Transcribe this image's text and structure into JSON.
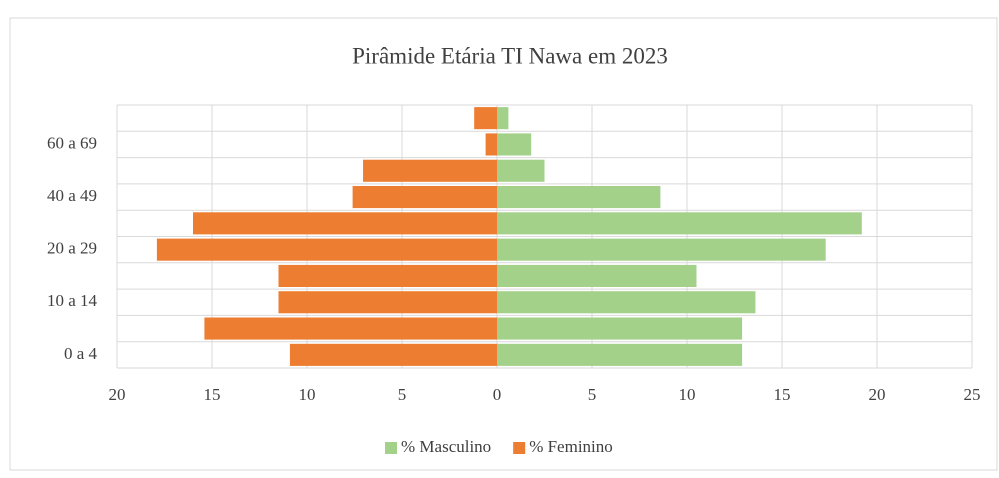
{
  "chart_data": {
    "type": "pyramid",
    "title": "Pirâmide Etária  TI Nawa em 2023",
    "categories": [
      "0 a 4",
      null,
      "10 a 14",
      null,
      "20 a 29",
      null,
      "40 a 49",
      null,
      "60 a 69",
      null
    ],
    "series": [
      {
        "name": "% Masculino",
        "color": "#a3d18a",
        "values": [
          12.9,
          12.9,
          13.6,
          10.5,
          17.3,
          19.2,
          8.6,
          2.5,
          1.8,
          0.6
        ]
      },
      {
        "name": "% Feminino",
        "color": "#ed7d31",
        "values": [
          -10.9,
          -15.4,
          -11.5,
          -11.5,
          -17.9,
          -16,
          -7.6,
          -7.05,
          -0.6,
          -1.2
        ]
      }
    ],
    "xlim": [
      -20,
      25
    ],
    "xticks": [
      {
        "value": -20,
        "label": "20"
      },
      {
        "value": -15,
        "label": "15"
      },
      {
        "value": -10,
        "label": "10"
      },
      {
        "value": -5,
        "label": "5"
      },
      0,
      5,
      10,
      15,
      20,
      25
    ],
    "grid": true,
    "legend": "bottom"
  }
}
